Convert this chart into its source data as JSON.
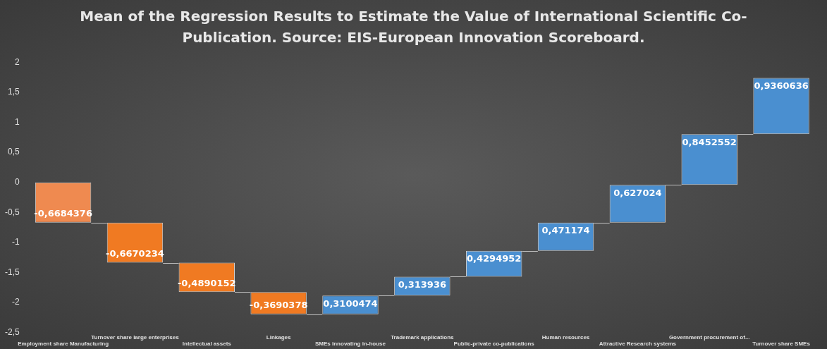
{
  "chart_data": {
    "type": "bar",
    "title": "Mean of the Regression Results to Estimate the Value of International Scientific Co-Publication. Source: EIS-European Innovation Scoreboard.",
    "categories": [
      "Employment share Manufacturing",
      "Turnover share large enterprises",
      "Intellectual assets",
      "Linkages",
      "SMEs innovating in-house",
      "Trademark applications",
      "Public-private co-publications",
      "Human resources",
      "Attractive Research systems",
      "Government procurement of...",
      "Turnover share SMEs"
    ],
    "values": [
      -0.6684376,
      -0.6670234,
      -0.4890152,
      -0.3690378,
      0.3100474,
      0.313936,
      0.4294952,
      0.471174,
      0.627024,
      0.8452552,
      0.9360636
    ],
    "base": [
      0,
      -0.6684376,
      -1.335461,
      -1.8244762,
      -2.193514,
      -1.8834666,
      -1.5695306,
      -1.1400354,
      -0.6688614,
      -0.0418374,
      0.8034178
    ],
    "colors": [
      "#ef8a50",
      "#f07a22",
      "#f07a22",
      "#f07a22",
      "#4a8fd0",
      "#4a8fd0",
      "#4a8fd0",
      "#4a8fd0",
      "#4a8fd0",
      "#4a8fd0",
      "#4a8fd0"
    ],
    "value_labels": [
      "-0,6684376",
      "-0,6670234",
      "-0,4890152",
      "-0,3690378",
      "0,3100474",
      "0,313936",
      "0,4294952",
      "0,471174",
      "0,627024",
      "0,8452552",
      "0,9360636"
    ],
    "ylim": [
      -2.5,
      2
    ],
    "yticks": [
      {
        "value": -2.5,
        "label": "-2,5"
      },
      -2,
      {
        "value": -1.5,
        "label": "-1,5"
      },
      -1,
      {
        "value": -0.5,
        "label": "-0,5"
      },
      0,
      {
        "value": 0.5,
        "label": "0,5"
      },
      1,
      {
        "value": 1.5,
        "label": "1,5"
      },
      2
    ],
    "grid": false,
    "legend": false
  }
}
